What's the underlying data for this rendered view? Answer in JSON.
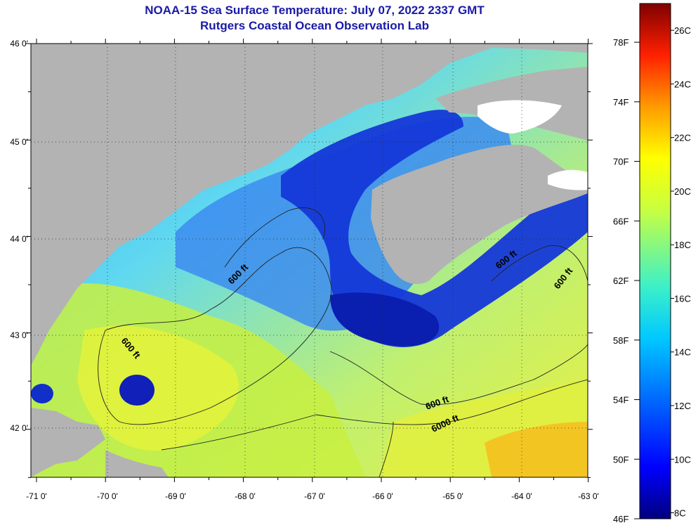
{
  "title_line1": "NOAA-15 Sea Surface Temperature:  July 07, 2022 2337 GMT",
  "title_line2": "Rutgers Coastal Ocean Observation Lab",
  "lat_ticks": [
    "46 0'",
    "45 0'",
    "44 0'",
    "43 0'",
    "42 0'"
  ],
  "lon_ticks": [
    "-71 0'",
    "-70 0'",
    "-69 0'",
    "-68 0'",
    "-67 0'",
    "-66 0'",
    "-65 0'",
    "-64 0'",
    "-63 0'"
  ],
  "contour_labels": [
    "600 ft",
    "600 ft",
    "600 ft",
    "600 ft",
    "600 ft",
    "6000 ft"
  ],
  "colorbar": {
    "fahrenheit": [
      "78F",
      "74F",
      "70F",
      "66F",
      "62F",
      "58F",
      "54F",
      "50F",
      "46F"
    ],
    "celsius": [
      "26C",
      "24C",
      "22C",
      "20C",
      "18C",
      "16C",
      "14C",
      "12C",
      "10C",
      "8C"
    ]
  },
  "colors": {
    "land": "#b3b3b3",
    "title": "#1a1aa6",
    "cold": "#000080",
    "warm": "#800000"
  }
}
